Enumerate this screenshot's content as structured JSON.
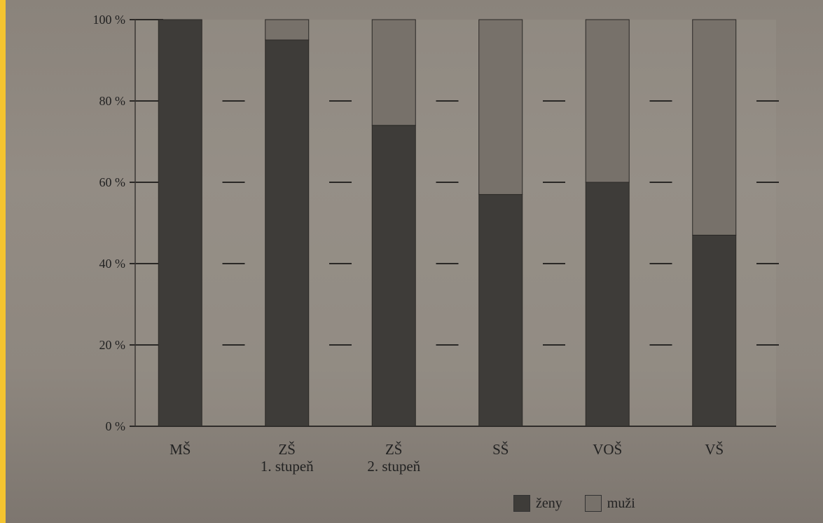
{
  "chart_data": {
    "type": "bar",
    "stacked": true,
    "percent": true,
    "categories": [
      [
        "MŠ"
      ],
      [
        "ZŠ",
        "1. stupeň"
      ],
      [
        "ZŠ",
        "2. stupeň"
      ],
      [
        "SŠ"
      ],
      [
        "VOŠ"
      ],
      [
        "VŠ"
      ]
    ],
    "series": [
      {
        "name": "ženy",
        "values": [
          100,
          95,
          74,
          57,
          60,
          47
        ],
        "color": "#3e3c39"
      },
      {
        "name": "muži",
        "values": [
          0,
          5,
          26,
          43,
          40,
          53
        ],
        "color": "#77716a"
      }
    ],
    "yticks": [
      "0 %",
      "20 %",
      "40 %",
      "60 %",
      "80 %",
      "100 %"
    ],
    "ylim": [
      0,
      100
    ],
    "grid": "dashes",
    "legend_position": "bottom-right"
  },
  "colors": {
    "frame": "#f4c430",
    "background": "#8e877f",
    "stripe": "#9c958d",
    "dash": "#2a2826"
  }
}
